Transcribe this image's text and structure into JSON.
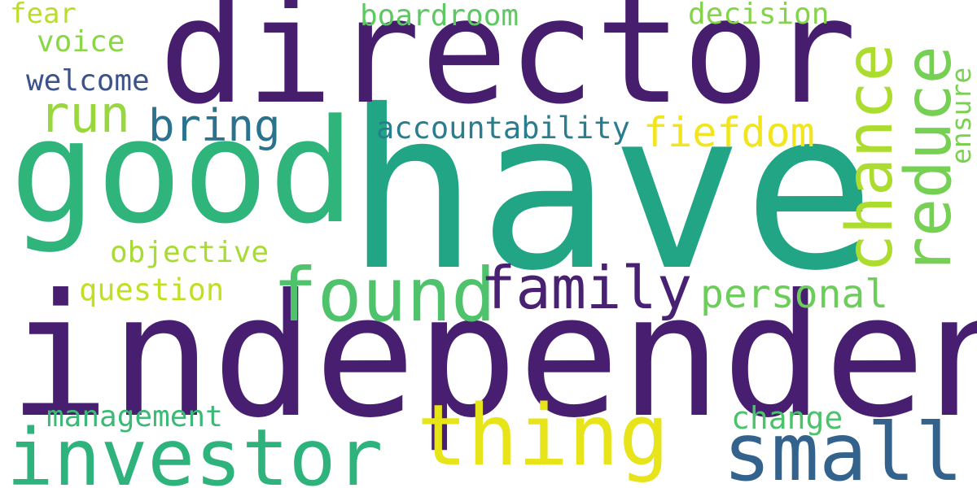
{
  "words": [
    {
      "text": "have",
      "color": "#21a585"
    },
    {
      "text": "independent",
      "color": "#481f70"
    },
    {
      "text": "director",
      "color": "#471e6e"
    },
    {
      "text": "good",
      "color": "#2fb47c"
    },
    {
      "text": "investor",
      "color": "#2eb37c"
    },
    {
      "text": "thing",
      "color": "#e7e419"
    },
    {
      "text": "small",
      "color": "#33638d"
    },
    {
      "text": "found",
      "color": "#4ec36b"
    },
    {
      "text": "family",
      "color": "#482173"
    },
    {
      "text": "chance",
      "color": "#addc30"
    },
    {
      "text": "reduce",
      "color": "#75d054"
    },
    {
      "text": "run",
      "color": "#98d83e"
    },
    {
      "text": "bring",
      "color": "#2c728e"
    },
    {
      "text": "fiefdom",
      "color": "#f1e51d"
    },
    {
      "text": "personal",
      "color": "#6ccd5a"
    },
    {
      "text": "accountability",
      "color": "#287d8e"
    },
    {
      "text": "ensure",
      "color": "#7ad151"
    },
    {
      "text": "objective",
      "color": "#a8db34"
    },
    {
      "text": "question",
      "color": "#c2df23"
    },
    {
      "text": "management",
      "color": "#3aba76"
    },
    {
      "text": "change",
      "color": "#4cc26c"
    },
    {
      "text": "boardroom",
      "color": "#5ec962"
    },
    {
      "text": "decision",
      "color": "#84d44b"
    },
    {
      "text": "welcome",
      "color": "#3b528b"
    },
    {
      "text": "voice",
      "color": "#8bd646"
    },
    {
      "text": "fear",
      "color": "#bade28"
    }
  ]
}
